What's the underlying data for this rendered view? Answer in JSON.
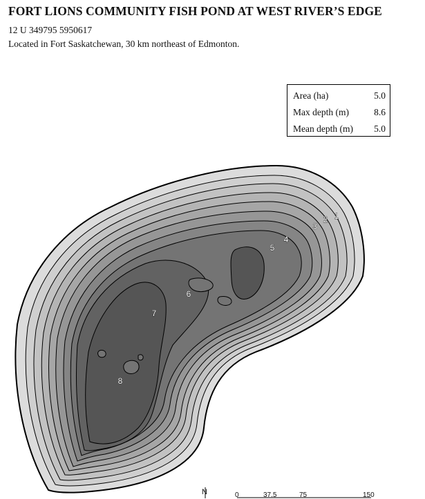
{
  "title": "FORT LIONS COMMUNITY FISH POND AT WEST RIVER’S EDGE",
  "coordinates": "12 U 349795 5950617",
  "location": "Located in Fort Saskatchewan, 30 km northeast of Edmonton.",
  "stats": [
    {
      "label": "Area (ha)",
      "value": "5.0"
    },
    {
      "label": "Max depth (m)",
      "value": "8.6"
    },
    {
      "label": "Mean depth (m)",
      "value": "5.0"
    }
  ],
  "depth_labels": [
    "1",
    "2",
    "3",
    "4",
    "5",
    "6",
    "7",
    "8"
  ],
  "north_label": "N",
  "scale_labels": [
    "0",
    "37.5",
    "75",
    "150"
  ],
  "colors": {
    "contour_1": "#dcdcdc",
    "contour_2": "#cfcfcf",
    "contour_3": "#c2c2c2",
    "contour_4": "#b4b4b4",
    "contour_5": "#a6a6a6",
    "contour_6": "#969696",
    "contour_7": "#858585",
    "contour_8": "#747474",
    "contour_9": "#626262",
    "contour_10": "#555555",
    "outline": "#000000"
  }
}
